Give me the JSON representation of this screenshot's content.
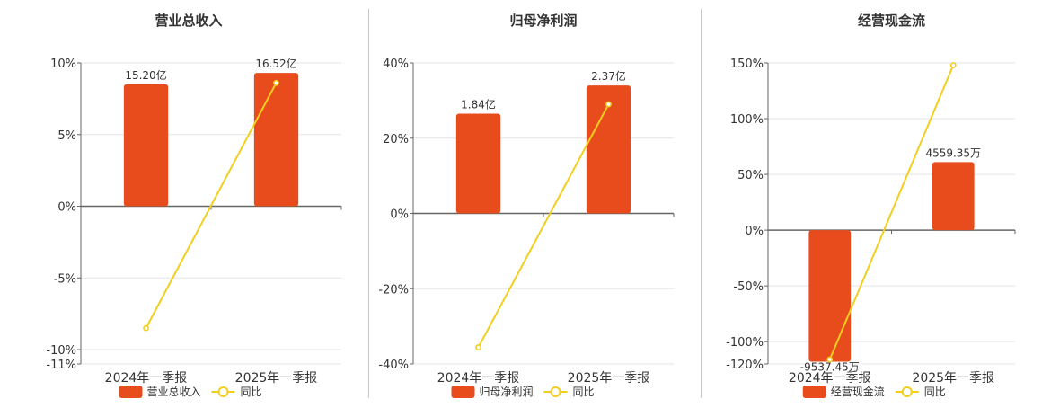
{
  "chart_data": [
    {
      "type": "bar",
      "title": "营业总收入",
      "categories": [
        "2024年一季报",
        "2025年一季报"
      ],
      "series": [
        {
          "name": "营业总收入",
          "type": "bar",
          "values": [
            8.5,
            9.3
          ],
          "labels": [
            "15.20亿",
            "16.52亿"
          ]
        },
        {
          "name": "同比",
          "type": "line",
          "values": [
            -8.5,
            8.6
          ]
        }
      ],
      "ylim": [
        -11,
        10
      ],
      "yticks": [
        10,
        5,
        0,
        -5,
        -10,
        -11
      ],
      "ytick_labels": [
        "10%",
        "5%",
        "0%",
        "-5%",
        "-10%",
        "-11%"
      ],
      "grid": true,
      "legend": "bottom"
    },
    {
      "type": "bar",
      "title": "归母净利润",
      "categories": [
        "2024年一季报",
        "2025年一季报"
      ],
      "series": [
        {
          "name": "归母净利润",
          "type": "bar",
          "values": [
            26.5,
            34.0
          ],
          "labels": [
            "1.84亿",
            "2.37亿"
          ]
        },
        {
          "name": "同比",
          "type": "line",
          "values": [
            -35.6,
            29.0
          ]
        }
      ],
      "ylim": [
        -40,
        40
      ],
      "yticks": [
        40,
        20,
        0,
        -20,
        -40
      ],
      "ytick_labels": [
        "40%",
        "20%",
        "0%",
        "-20%",
        "-40%"
      ],
      "grid": true,
      "legend": "bottom"
    },
    {
      "type": "bar",
      "title": "经营现金流",
      "categories": [
        "2024年一季报",
        "2025年一季报"
      ],
      "series": [
        {
          "name": "经营现金流",
          "type": "bar",
          "values": [
            -118,
            61
          ],
          "labels": [
            "-9537.45万",
            "4559.35万"
          ]
        },
        {
          "name": "同比",
          "type": "line",
          "values": [
            -116,
            148
          ]
        }
      ],
      "ylim": [
        -120,
        150
      ],
      "yticks": [
        150,
        100,
        50,
        0,
        -50,
        -100,
        -120
      ],
      "ytick_labels": [
        "150%",
        "100%",
        "50%",
        "0%",
        "-50%",
        "-100%",
        "-120%"
      ],
      "grid": true,
      "legend": "bottom"
    }
  ],
  "colors": {
    "bar": "#E84C1C",
    "line": "#F2CF1E",
    "axis": "#666666",
    "grid": "#e4e4ea",
    "text": "#333333"
  }
}
